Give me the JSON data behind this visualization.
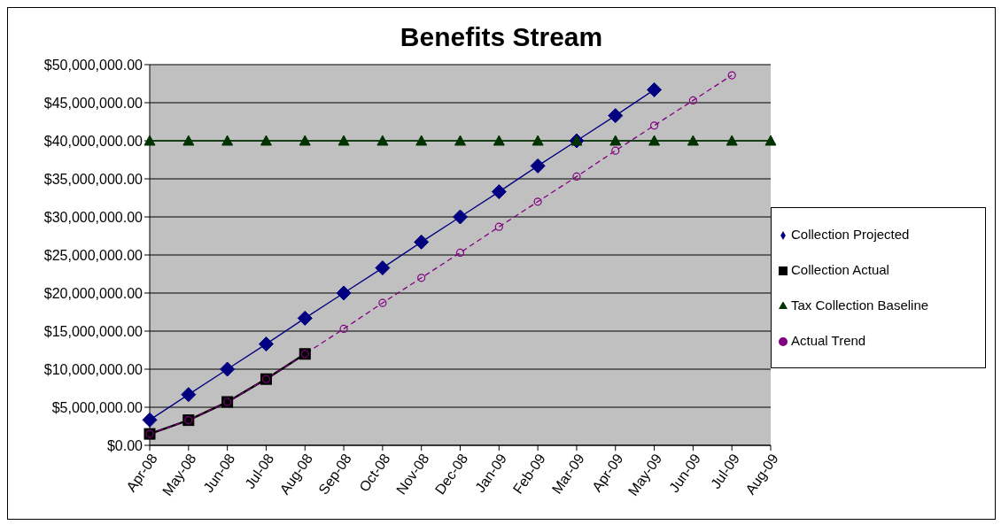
{
  "chart_data": {
    "type": "line",
    "title": "Benefits Stream",
    "categories": [
      "Apr-08",
      "May-08",
      "Jun-08",
      "Jul-08",
      "Aug-08",
      "Sep-08",
      "Oct-08",
      "Nov-08",
      "Dec-08",
      "Jan-09",
      "Feb-09",
      "Mar-09",
      "Apr-09",
      "May-09",
      "Jun-09",
      "Jul-09",
      "Aug-09"
    ],
    "series": [
      {
        "name": "Collection Projected",
        "color": "#000080",
        "marker": "diamond",
        "line_style": "solid",
        "values": [
          3330000,
          6670000,
          10000000,
          13300000,
          16700000,
          20000000,
          23300000,
          26700000,
          30000000,
          33300000,
          36700000,
          40000000,
          43300000,
          46700000,
          null,
          null,
          null
        ]
      },
      {
        "name": "Collection Actual",
        "color": "#000000",
        "marker": "square",
        "line_style": "solid",
        "values": [
          1500000,
          3300000,
          5700000,
          8700000,
          12000000,
          null,
          null,
          null,
          null,
          null,
          null,
          null,
          null,
          null,
          null,
          null,
          null
        ]
      },
      {
        "name": "Tax Collection Baseline",
        "color": "#003300",
        "marker": "triangle",
        "line_style": "solid",
        "values": [
          40000000,
          40000000,
          40000000,
          40000000,
          40000000,
          40000000,
          40000000,
          40000000,
          40000000,
          40000000,
          40000000,
          40000000,
          40000000,
          40000000,
          40000000,
          40000000,
          40000000
        ]
      },
      {
        "name": "Actual Trend",
        "color": "#800080",
        "marker": "circle",
        "line_style": "dashed",
        "values": [
          1500000,
          3300000,
          5700000,
          8700000,
          12000000,
          15300000,
          18700000,
          22000000,
          25300000,
          28700000,
          32000000,
          35300000,
          38700000,
          42000000,
          45300000,
          48600000,
          null
        ]
      }
    ],
    "ylim": [
      0,
      50000000
    ],
    "yticks": [
      {
        "value": 0,
        "label": "$0.00"
      },
      {
        "value": 5000000,
        "label": "$5,000,000.00"
      },
      {
        "value": 10000000,
        "label": "$10,000,000.00"
      },
      {
        "value": 15000000,
        "label": "$15,000,000.00"
      },
      {
        "value": 20000000,
        "label": "$20,000,000.00"
      },
      {
        "value": 25000000,
        "label": "$25,000,000.00"
      },
      {
        "value": 30000000,
        "label": "$30,000,000.00"
      },
      {
        "value": 35000000,
        "label": "$35,000,000.00"
      },
      {
        "value": 40000000,
        "label": "$40,000,000.00"
      },
      {
        "value": 45000000,
        "label": "$45,000,000.00"
      },
      {
        "value": 50000000,
        "label": "$50,000,000.00"
      }
    ],
    "grid": "y",
    "legend": "right"
  }
}
